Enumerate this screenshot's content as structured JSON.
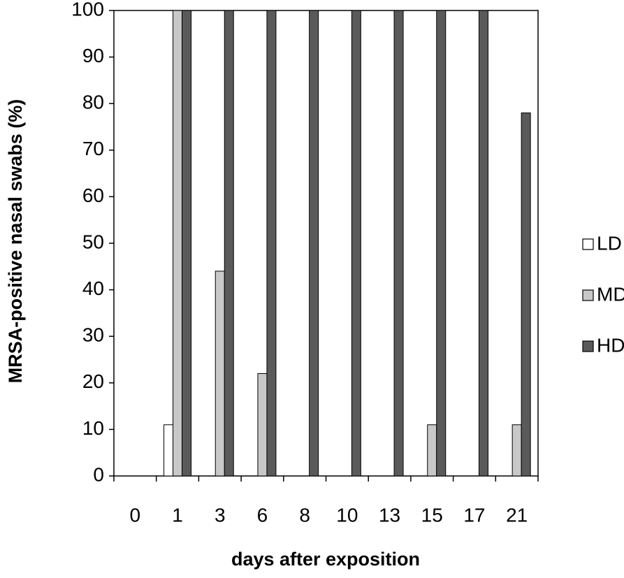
{
  "chart_data": {
    "type": "bar",
    "x_label": "days after exposition",
    "y_label": "MRSA-positive nasal swabs (%)",
    "categories": [
      "0",
      "1",
      "3",
      "6",
      "8",
      "10",
      "13",
      "15",
      "17",
      "21"
    ],
    "series": [
      {
        "name": "LD",
        "color": "#ffffff",
        "values": [
          0,
          11,
          0,
          0,
          0,
          0,
          0,
          0,
          0,
          0
        ]
      },
      {
        "name": "MD",
        "color": "#c8c8c8",
        "values": [
          0,
          100,
          44,
          22,
          0,
          0,
          0,
          11,
          0,
          11
        ]
      },
      {
        "name": "HD",
        "color": "#5a5a5a",
        "values": [
          0,
          100,
          100,
          100,
          100,
          100,
          100,
          100,
          100,
          78
        ]
      }
    ],
    "ylim": [
      0,
      100
    ],
    "yticks": [
      0,
      10,
      20,
      30,
      40,
      50,
      60,
      70,
      80,
      90,
      100
    ],
    "grid": false,
    "legend": "right"
  }
}
